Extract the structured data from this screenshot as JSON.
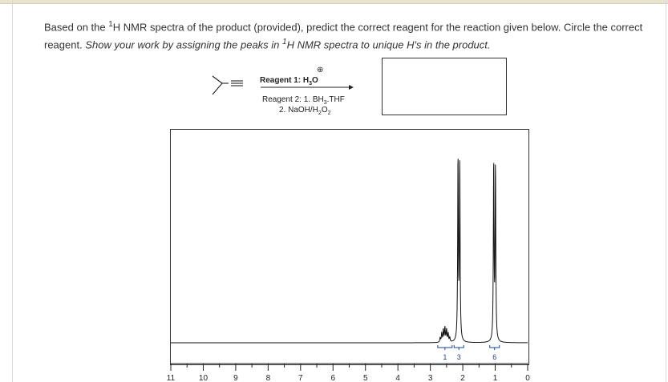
{
  "question": {
    "part1": "Based on the ",
    "superscript_1": "1",
    "part2": "H NMR spectra of the product (provided), predict the correct reagent for the reaction given below. Circle the correct reagent. ",
    "italic_part1": "Show your work by assigning the peaks in ",
    "superscript_2": "1",
    "italic_part2": "H NMR spectra to unique H's in the product."
  },
  "reaction": {
    "reagent1_label": "Reagent 1: H",
    "reagent1_sub": "3",
    "reagent1_tail": "O",
    "charge_symbol": "⊕",
    "reagent2_label": "Reagent 2: 1. BH",
    "reagent2_sub": "3",
    "reagent2_tail": ".THF",
    "reagent2_step2_pre": "2. NaOH/H",
    "reagent2_step2_sub": "2",
    "reagent2_step2_mid": "O",
    "reagent2_step2_sub2": "2"
  },
  "chart_data": {
    "type": "line",
    "title": "",
    "xlabel": "",
    "ylabel": "",
    "x_axis_ticks": [
      "11",
      "10",
      "9",
      "8",
      "7",
      "6",
      "5",
      "4",
      "3",
      "2",
      "1",
      "0"
    ],
    "xlim": [
      11,
      0
    ],
    "x_reversed": true,
    "peaks": [
      {
        "shift_ppm": 2.55,
        "relative_height": 0.07,
        "integration": "1"
      },
      {
        "shift_ppm": 2.12,
        "relative_height": 0.88,
        "integration": "3"
      },
      {
        "shift_ppm": 1.02,
        "relative_height": 0.86,
        "integration": "6"
      }
    ],
    "integration_labels": [
      "1",
      "3",
      "6"
    ]
  }
}
